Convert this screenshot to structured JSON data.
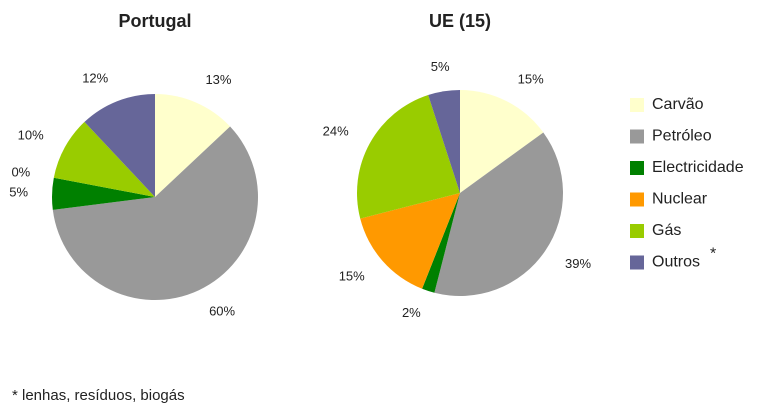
{
  "chart_data": [
    {
      "type": "pie",
      "title": "Portugal",
      "values": [
        13,
        60,
        5,
        0,
        10,
        12
      ],
      "value_labels": [
        "13%",
        "60%",
        "5%",
        "0%",
        "10%",
        "12%"
      ]
    },
    {
      "type": "pie",
      "title": "UE (15)",
      "values": [
        15,
        39,
        2,
        15,
        24,
        5
      ],
      "value_labels": [
        "15%",
        "39%",
        "2%",
        "15%",
        "24%",
        "5%"
      ]
    }
  ],
  "legend": {
    "categories": [
      "Carvão",
      "Petróleo",
      "Electricidade",
      "Nuclear",
      "Gás",
      "Outros"
    ],
    "colors": [
      "#ffffcc",
      "#999999",
      "#008000",
      "#ff9900",
      "#99cc00",
      "#666699"
    ],
    "marker": "*"
  },
  "footnote": "* lenhas, resíduos, biogás"
}
